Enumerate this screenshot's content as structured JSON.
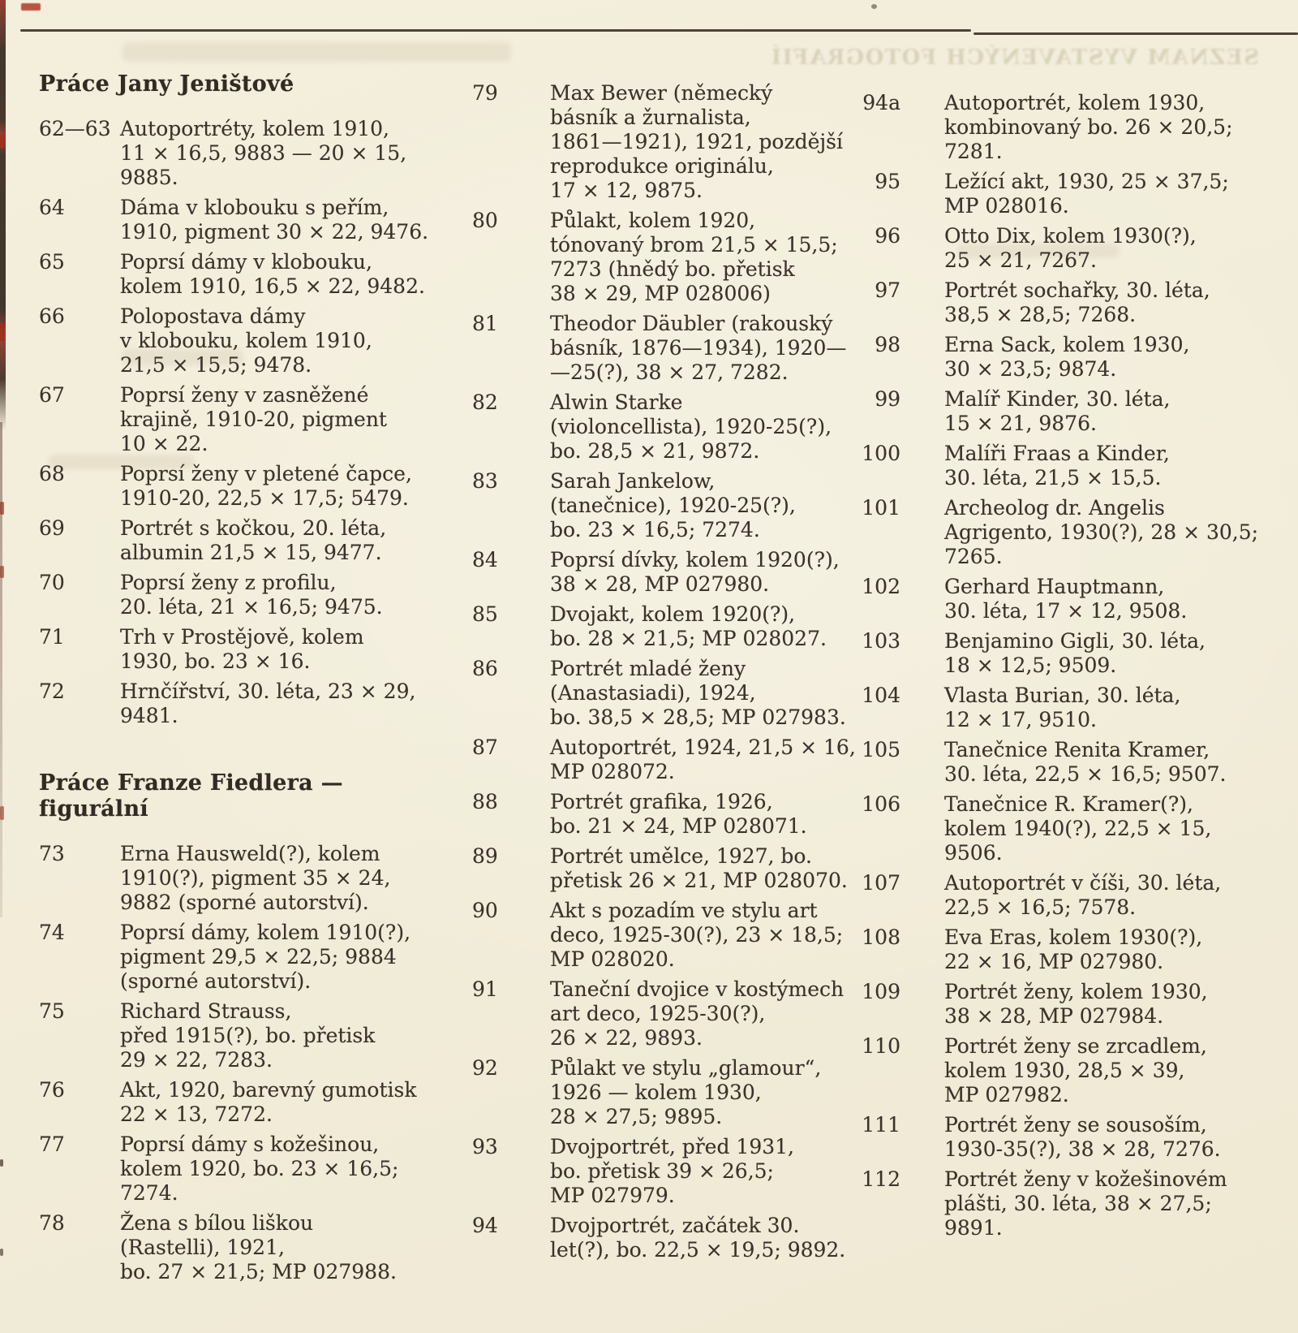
{
  "page": {
    "background_color": "#f2edda",
    "ink_color": "#3b322a",
    "bleedthrough_text": "SEZNAM VYSTAVENÝCH FOTOGRAFIÍ"
  },
  "columns": [
    {
      "blocks": [
        {
          "type": "heading",
          "text": "Práce Jany Jeništové"
        },
        {
          "type": "entry",
          "num": "62—63",
          "lines": [
            "Autoportréty, kolem 1910,",
            "11 × 16,5, 9883 — 20 × 15,",
            "9885."
          ]
        },
        {
          "type": "entry",
          "num": "64",
          "lines": [
            "Dáma v klobouku s peřím,",
            "1910, pigment 30 × 22, 9476."
          ]
        },
        {
          "type": "entry",
          "num": "65",
          "lines": [
            "Poprsí dámy v klobouku,",
            "kolem 1910, 16,5 × 22, 9482."
          ]
        },
        {
          "type": "entry",
          "num": "66",
          "lines": [
            "Polopostava dámy",
            "v klobouku, kolem 1910,",
            "21,5 × 15,5; 9478."
          ]
        },
        {
          "type": "entry",
          "num": "67",
          "lines": [
            "Poprsí ženy v zasněžené",
            "krajině, 1910-20, pigment",
            "10 × 22."
          ]
        },
        {
          "type": "entry",
          "num": "68",
          "lines": [
            "Poprsí ženy v pletené čapce,",
            "1910-20, 22,5 × 17,5; 5479."
          ]
        },
        {
          "type": "entry",
          "num": "69",
          "lines": [
            "Portrét s kočkou, 20. léta,",
            "albumin 21,5 × 15, 9477."
          ]
        },
        {
          "type": "entry",
          "num": "70",
          "lines": [
            "Poprsí ženy z profilu,",
            "20. léta, 21 × 16,5; 9475."
          ]
        },
        {
          "type": "entry",
          "num": "71",
          "lines": [
            "Trh v Prostějově, kolem",
            "1930, bo. 23 × 16."
          ]
        },
        {
          "type": "entry",
          "num": "72",
          "lines": [
            "Hrnčířství, 30. léta, 23 × 29,",
            "9481."
          ]
        },
        {
          "type": "heading",
          "text": "Práce Franze Fiedlera — figurální",
          "second": true
        },
        {
          "type": "entry",
          "num": "73",
          "lines": [
            "Erna Hausweld(?), kolem",
            "1910(?), pigment 35 × 24,",
            "9882 (sporné autorství)."
          ]
        },
        {
          "type": "entry",
          "num": "74",
          "lines": [
            "Poprsí dámy, kolem 1910(?),",
            "pigment 29,5 × 22,5; 9884",
            "(sporné autorství)."
          ]
        },
        {
          "type": "entry",
          "num": "75",
          "lines": [
            "Richard Strauss,",
            "před 1915(?), bo. přetisk",
            "29 × 22, 7283."
          ]
        },
        {
          "type": "entry",
          "num": "76",
          "lines": [
            "Akt, 1920, barevný gumotisk",
            "22 × 13, 7272."
          ]
        },
        {
          "type": "entry",
          "num": "77",
          "lines": [
            "Poprsí dámy s kožešinou,",
            "kolem 1920, bo. 23 × 16,5;",
            "7274."
          ]
        },
        {
          "type": "entry",
          "num": "78",
          "lines": [
            "Žena s bílou liškou",
            "(Rastelli), 1921,",
            "bo. 27 × 21,5; MP 027988."
          ]
        }
      ]
    },
    {
      "blocks": [
        {
          "type": "entry",
          "num": "79",
          "lines": [
            "Max Bewer (německý",
            "básník a žurnalista,",
            "1861—1921), 1921, pozdější",
            "reprodukce originálu,",
            "17 × 12, 9875."
          ]
        },
        {
          "type": "entry",
          "num": "80",
          "lines": [
            "Půlakt, kolem 1920,",
            "tónovaný brom 21,5 × 15,5;",
            "7273 (hnědý bo. přetisk",
            "38 × 29, MP 028006)"
          ]
        },
        {
          "type": "entry",
          "num": "81",
          "lines": [
            "Theodor Däubler (rakouský",
            "básník, 1876—1934), 1920—",
            "—25(?), 38 × 27, 7282."
          ]
        },
        {
          "type": "entry",
          "num": "82",
          "lines": [
            "Alwin Starke",
            "(violoncellista), 1920-25(?),",
            "bo. 28,5 × 21, 9872."
          ]
        },
        {
          "type": "entry",
          "num": "83",
          "lines": [
            "Sarah Jankelow,",
            "(tanečnice), 1920-25(?),",
            "bo. 23 × 16,5; 7274."
          ]
        },
        {
          "type": "entry",
          "num": "84",
          "lines": [
            "Poprsí dívky, kolem 1920(?),",
            "38 × 28, MP 027980."
          ]
        },
        {
          "type": "entry",
          "num": "85",
          "lines": [
            "Dvojakt, kolem 1920(?),",
            "bo. 28 × 21,5; MP 028027."
          ]
        },
        {
          "type": "entry",
          "num": "86",
          "lines": [
            "Portrét mladé ženy",
            "(Anastasiadi), 1924,",
            "bo. 38,5 × 28,5; MP 027983."
          ]
        },
        {
          "type": "entry",
          "num": "87",
          "lines": [
            "Autoportrét, 1924, 21,5 × 16,",
            "MP 028072."
          ]
        },
        {
          "type": "entry",
          "num": "88",
          "lines": [
            "Portrét grafika, 1926,",
            "bo. 21 × 24, MP 028071."
          ]
        },
        {
          "type": "entry",
          "num": "89",
          "lines": [
            "Portrét umělce, 1927, bo.",
            "přetisk 26 × 21, MP 028070."
          ]
        },
        {
          "type": "entry",
          "num": "90",
          "lines": [
            "Akt s pozadím ve stylu art",
            "deco, 1925-30(?), 23 × 18,5;",
            "MP 028020."
          ]
        },
        {
          "type": "entry",
          "num": "91",
          "lines": [
            "Taneční dvojice v kostýmech",
            "art deco, 1925-30(?),",
            "26 × 22, 9893."
          ]
        },
        {
          "type": "entry",
          "num": "92",
          "lines": [
            "Půlakt ve stylu „glamour“,",
            "1926 — kolem 1930,",
            "28 × 27,5; 9895."
          ]
        },
        {
          "type": "entry",
          "num": "93",
          "lines": [
            "Dvojportrét, před 1931,",
            "bo. přetisk 39 × 26,5;",
            "MP 027979."
          ]
        },
        {
          "type": "entry",
          "num": "94",
          "lines": [
            "Dvojportrét, začátek 30.",
            "let(?), bo. 22,5 × 19,5; 9892."
          ]
        }
      ]
    },
    {
      "blocks": [
        {
          "type": "entry",
          "num": "94a",
          "lines": [
            "Autoportrét, kolem 1930,",
            "kombinovaný bo. 26 × 20,5;",
            "7281."
          ]
        },
        {
          "type": "entry",
          "num": "95",
          "lines": [
            "Ležící akt, 1930, 25 × 37,5;",
            "MP 028016."
          ]
        },
        {
          "type": "entry",
          "num": "96",
          "lines": [
            "Otto Dix, kolem 1930(?),",
            "25 × 21, 7267."
          ]
        },
        {
          "type": "entry",
          "num": "97",
          "lines": [
            "Portrét sochařky, 30. léta,",
            "38,5 × 28,5; 7268."
          ]
        },
        {
          "type": "entry",
          "num": "98",
          "lines": [
            "Erna Sack, kolem 1930,",
            "30 × 23,5; 9874."
          ]
        },
        {
          "type": "entry",
          "num": "99",
          "lines": [
            "Malíř Kinder, 30. léta,",
            "15 × 21, 9876."
          ]
        },
        {
          "type": "entry",
          "num": "100",
          "lines": [
            "Malíři Fraas a Kinder,",
            "30. léta, 21,5 × 15,5."
          ]
        },
        {
          "type": "entry",
          "num": "101",
          "lines": [
            "Archeolog dr. Angelis",
            "Agrigento, 1930(?), 28 × 30,5;",
            "7265."
          ]
        },
        {
          "type": "entry",
          "num": "102",
          "lines": [
            "Gerhard Hauptmann,",
            "30. léta, 17 × 12, 9508."
          ]
        },
        {
          "type": "entry",
          "num": "103",
          "lines": [
            "Benjamino Gigli, 30. léta,",
            "18 × 12,5; 9509."
          ]
        },
        {
          "type": "entry",
          "num": "104",
          "lines": [
            "Vlasta Burian, 30. léta,",
            "12 × 17, 9510."
          ]
        },
        {
          "type": "entry",
          "num": "105",
          "lines": [
            "Tanečnice Renita Kramer,",
            "30. léta, 22,5 × 16,5; 9507."
          ]
        },
        {
          "type": "entry",
          "num": "106",
          "lines": [
            "Tanečnice R. Kramer(?),",
            "kolem 1940(?), 22,5 × 15,",
            "9506."
          ]
        },
        {
          "type": "entry",
          "num": "107",
          "lines": [
            "Autoportrét v číši, 30. léta,",
            "22,5 × 16,5; 7578."
          ]
        },
        {
          "type": "entry",
          "num": "108",
          "lines": [
            "Eva Eras, kolem 1930(?),",
            "22 × 16, MP 027980."
          ]
        },
        {
          "type": "entry",
          "num": "109",
          "lines": [
            "Portrét ženy, kolem 1930,",
            "38 × 28, MP 027984."
          ]
        },
        {
          "type": "entry",
          "num": "110",
          "lines": [
            "Portrét ženy se zrcadlem,",
            "kolem 1930, 28,5 × 39,",
            "MP 027982."
          ]
        },
        {
          "type": "entry",
          "num": "111",
          "lines": [
            "Portrét ženy se sousoším,",
            "1930-35(?), 38 × 28, 7276."
          ]
        },
        {
          "type": "entry",
          "num": "112",
          "lines": [
            "Portrét ženy v kožešinovém",
            "plášti, 30. léta, 38 × 27,5;",
            "9891."
          ]
        }
      ]
    }
  ]
}
